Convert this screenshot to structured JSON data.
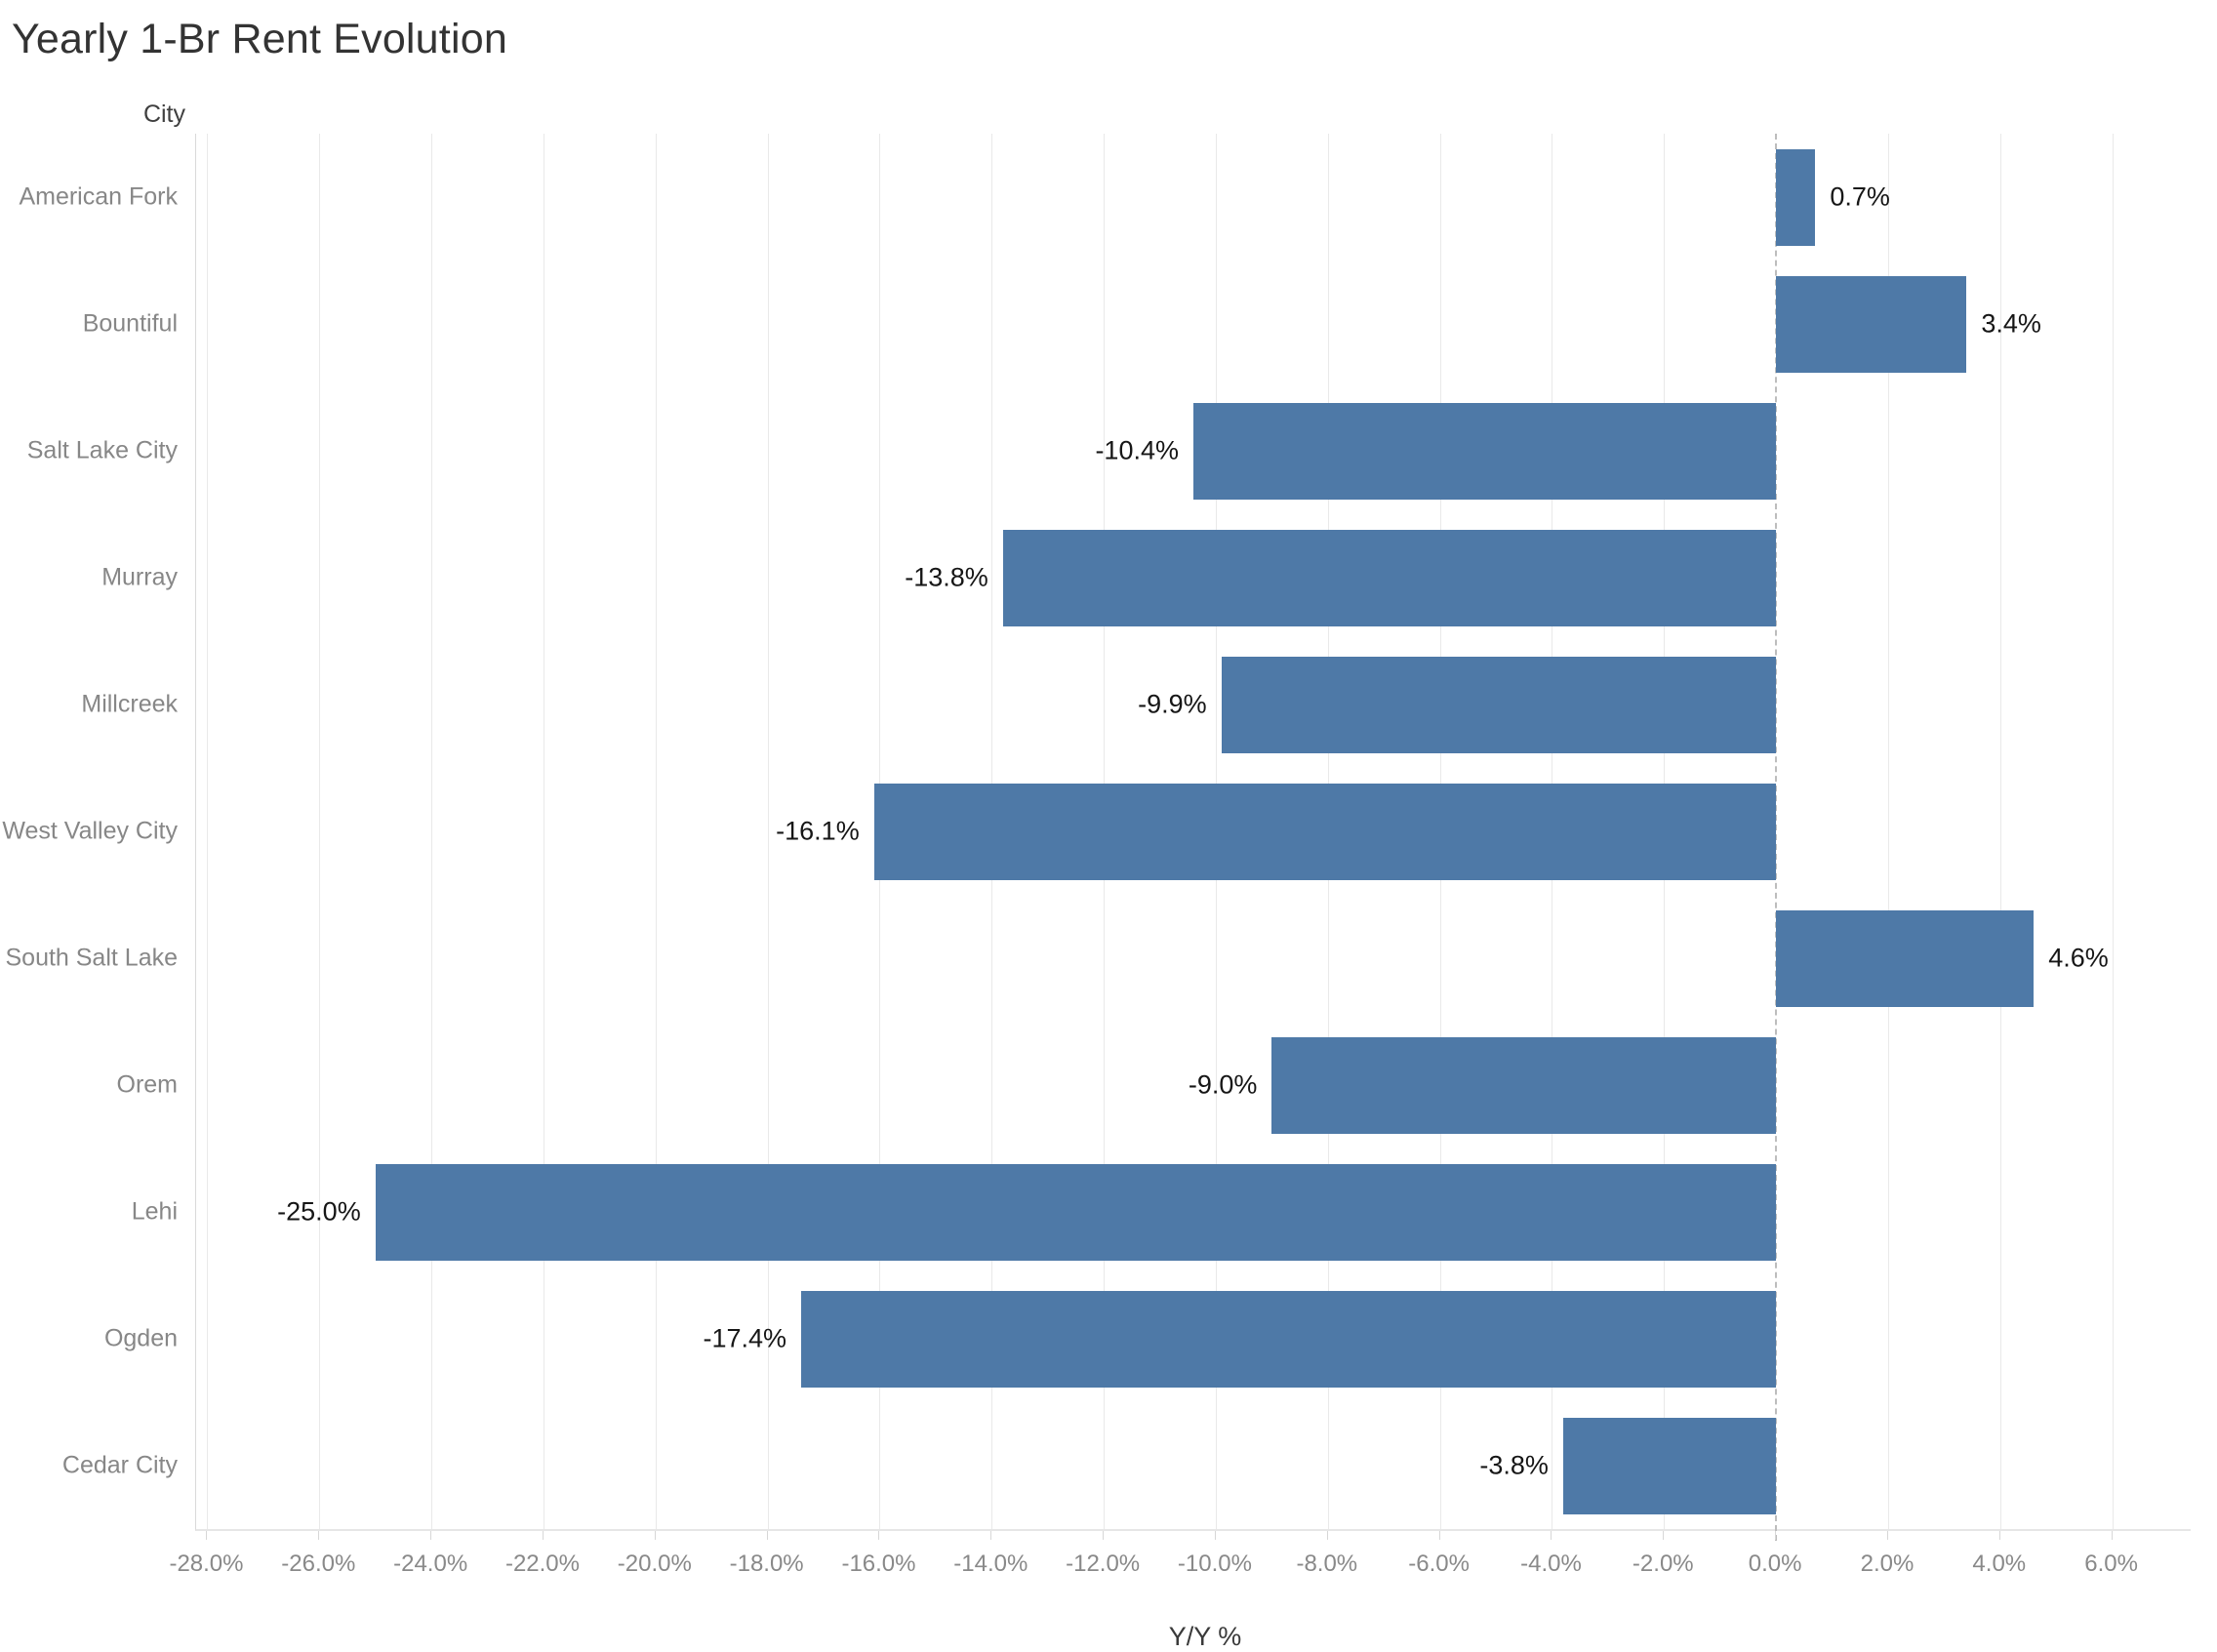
{
  "title": "Yearly 1-Br Rent Evolution",
  "colors": {
    "bar": "#4e79a7",
    "grid": "#e9e9e9",
    "axis_border": "#d9d9d9",
    "zero_line": "#bdbdbd",
    "city_label": "#878787",
    "tick_label": "#898989",
    "value_label": "#161616",
    "title": "#333333"
  },
  "chart_data": {
    "type": "bar",
    "orientation": "horizontal",
    "title": "Yearly 1-Br Rent Evolution",
    "row_header": "City",
    "xlabel": "Y/Y %",
    "categories": [
      "American Fork",
      "Bountiful",
      "Salt Lake City",
      "Murray",
      "Millcreek",
      "West Valley City",
      "South Salt Lake",
      "Orem",
      "Lehi",
      "Ogden",
      "Cedar City"
    ],
    "values": [
      0.7,
      3.4,
      -10.4,
      -13.8,
      -9.9,
      -16.1,
      4.6,
      -9.0,
      -25.0,
      -17.4,
      -3.8
    ],
    "value_labels": [
      "0.7%",
      "3.4%",
      "-10.4%",
      "-13.8%",
      "-9.9%",
      "-16.1%",
      "4.6%",
      "-9.0%",
      "-25.0%",
      "-17.4%",
      "-3.8%"
    ],
    "xlim": [
      -28.2,
      7.4
    ],
    "xticks": [
      -28,
      -26,
      -24,
      -22,
      -20,
      -18,
      -16,
      -14,
      -12,
      -10,
      -8,
      -6,
      -4,
      -2,
      0,
      2,
      4,
      6
    ],
    "xtick_labels": [
      "-28.0%",
      "-26.0%",
      "-24.0%",
      "-22.0%",
      "-20.0%",
      "-18.0%",
      "-16.0%",
      "-14.0%",
      "-12.0%",
      "-10.0%",
      "-8.0%",
      "-6.0%",
      "-4.0%",
      "-2.0%",
      "0.0%",
      "2.0%",
      "4.0%",
      "6.0%"
    ],
    "grid": "vertical",
    "zero_line": "dashed",
    "legend": "none"
  }
}
